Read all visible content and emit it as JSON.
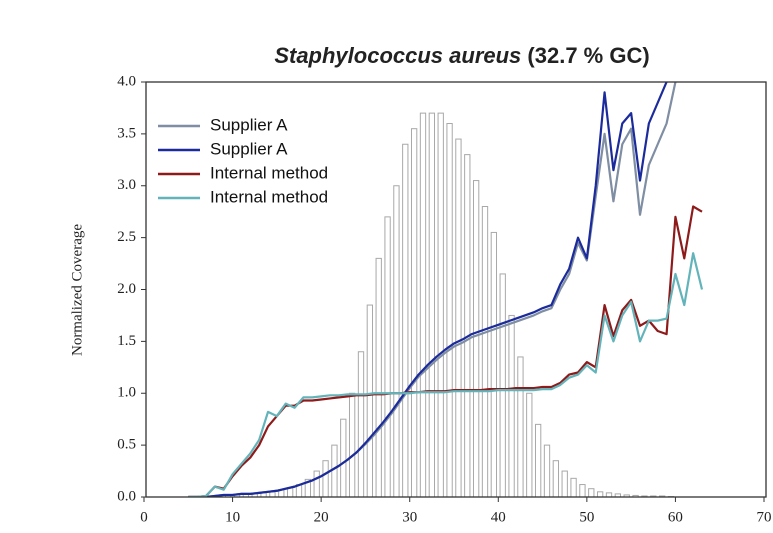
{
  "chart_data": {
    "type": "line",
    "title_species": "Staphylococcus aureus",
    "title_suffix": "(32.7 % GC)",
    "ylabel": "Normalized Coverage",
    "xlim": [
      0,
      70
    ],
    "xticks": [
      0,
      10,
      20,
      30,
      40,
      50,
      60,
      70
    ],
    "ylim": [
      0,
      4
    ],
    "yticks": [
      {
        "value": 0,
        "label": "0.0"
      },
      {
        "value": 0.5,
        "label": "0.5"
      },
      {
        "value": 1,
        "label": "1.0"
      },
      {
        "value": 1.5,
        "label": "1.5"
      },
      {
        "value": 2,
        "label": "2.0"
      },
      {
        "value": 2.5,
        "label": "2.5"
      },
      {
        "value": 3,
        "label": "3.0"
      },
      {
        "value": 3.5,
        "label": "3.5"
      },
      {
        "value": 4,
        "label": "4.0"
      }
    ],
    "legend": "upper left",
    "x": [
      5,
      6,
      7,
      8,
      9,
      10,
      11,
      12,
      13,
      14,
      15,
      16,
      17,
      18,
      19,
      20,
      21,
      22,
      23,
      24,
      25,
      26,
      27,
      28,
      29,
      30,
      31,
      32,
      33,
      34,
      35,
      36,
      37,
      38,
      39,
      40,
      41,
      42,
      43,
      44,
      45,
      46,
      47,
      48,
      49,
      50,
      51,
      52,
      53,
      54,
      55,
      56,
      57,
      58,
      59,
      60,
      61,
      62,
      63
    ],
    "series": [
      {
        "name": "Supplier A",
        "color": "#7f8ea3",
        "values": [
          0,
          0,
          0,
          0.01,
          0.02,
          0.02,
          0.03,
          0.03,
          0.04,
          0.05,
          0.06,
          0.08,
          0.1,
          0.13,
          0.16,
          0.2,
          0.25,
          0.3,
          0.36,
          0.43,
          0.51,
          0.6,
          0.7,
          0.81,
          0.93,
          1.05,
          1.16,
          1.24,
          1.32,
          1.39,
          1.45,
          1.49,
          1.54,
          1.57,
          1.6,
          1.63,
          1.66,
          1.69,
          1.72,
          1.75,
          1.79,
          1.82,
          2.0,
          2.15,
          2.45,
          2.28,
          2.9,
          3.5,
          2.85,
          3.4,
          3.55,
          2.72,
          3.2,
          3.4,
          3.6,
          4.0,
          null,
          null,
          null
        ]
      },
      {
        "name": "Supplier A",
        "color": "#1c2b9c",
        "values": [
          0,
          0,
          0,
          0.01,
          0.02,
          0.02,
          0.03,
          0.03,
          0.04,
          0.05,
          0.06,
          0.08,
          0.1,
          0.13,
          0.16,
          0.2,
          0.25,
          0.3,
          0.36,
          0.43,
          0.52,
          0.62,
          0.72,
          0.83,
          0.95,
          1.07,
          1.18,
          1.27,
          1.35,
          1.42,
          1.48,
          1.52,
          1.57,
          1.6,
          1.63,
          1.66,
          1.69,
          1.72,
          1.75,
          1.78,
          1.82,
          1.85,
          2.05,
          2.2,
          2.5,
          2.3,
          3.0,
          3.9,
          3.15,
          3.6,
          3.7,
          3.05,
          3.6,
          3.8,
          4.0,
          null,
          null,
          null,
          null
        ]
      },
      {
        "name": "Internal method",
        "color": "#8e1b1b",
        "values": [
          0,
          0,
          0.01,
          0.1,
          0.08,
          0.2,
          0.3,
          0.38,
          0.5,
          0.68,
          0.78,
          0.88,
          0.88,
          0.93,
          0.93,
          0.94,
          0.95,
          0.96,
          0.97,
          0.98,
          0.98,
          0.99,
          0.99,
          1.0,
          1.0,
          1.01,
          1.01,
          1.02,
          1.02,
          1.02,
          1.03,
          1.03,
          1.03,
          1.03,
          1.04,
          1.04,
          1.04,
          1.05,
          1.05,
          1.05,
          1.06,
          1.06,
          1.1,
          1.18,
          1.2,
          1.3,
          1.25,
          1.85,
          1.55,
          1.8,
          1.9,
          1.65,
          1.7,
          1.6,
          1.57,
          2.7,
          2.3,
          2.8,
          2.75
        ]
      },
      {
        "name": "Internal method",
        "color": "#63b4ba",
        "values": [
          0,
          0,
          0.01,
          0.1,
          0.07,
          0.22,
          0.32,
          0.42,
          0.55,
          0.82,
          0.78,
          0.9,
          0.86,
          0.96,
          0.96,
          0.97,
          0.98,
          0.98,
          0.99,
          0.99,
          0.99,
          1.0,
          1.0,
          1.0,
          1.0,
          1.0,
          1.01,
          1.01,
          1.01,
          1.01,
          1.02,
          1.02,
          1.02,
          1.02,
          1.02,
          1.03,
          1.03,
          1.03,
          1.03,
          1.03,
          1.04,
          1.04,
          1.08,
          1.15,
          1.18,
          1.27,
          1.2,
          1.75,
          1.5,
          1.75,
          1.88,
          1.5,
          1.7,
          1.7,
          1.72,
          2.15,
          1.85,
          2.35,
          2.0
        ]
      }
    ],
    "histogram": {
      "color": "#a8a8a8",
      "bins": [
        5,
        6,
        7,
        8,
        9,
        10,
        11,
        12,
        13,
        14,
        15,
        16,
        17,
        18,
        19,
        20,
        21,
        22,
        23,
        24,
        25,
        26,
        27,
        28,
        29,
        30,
        31,
        32,
        33,
        34,
        35,
        36,
        37,
        38,
        39,
        40,
        41,
        42,
        43,
        44,
        45,
        46,
        47,
        48,
        49,
        50,
        51,
        52,
        53,
        54,
        55,
        56,
        57,
        58,
        59,
        60
      ],
      "values": [
        0,
        0,
        0.01,
        0.01,
        0.02,
        0.02,
        0.03,
        0.03,
        0.04,
        0.05,
        0.07,
        0.09,
        0.12,
        0.17,
        0.25,
        0.35,
        0.5,
        0.75,
        1.0,
        1.4,
        1.85,
        2.3,
        2.7,
        3.0,
        3.4,
        3.55,
        3.7,
        3.7,
        3.7,
        3.6,
        3.45,
        3.3,
        3.05,
        2.8,
        2.55,
        2.15,
        1.75,
        1.35,
        1.0,
        0.7,
        0.5,
        0.35,
        0.25,
        0.18,
        0.12,
        0.08,
        0.05,
        0.04,
        0.03,
        0.02,
        0.015,
        0.01,
        0.01,
        0.01,
        0.005
      ]
    }
  }
}
